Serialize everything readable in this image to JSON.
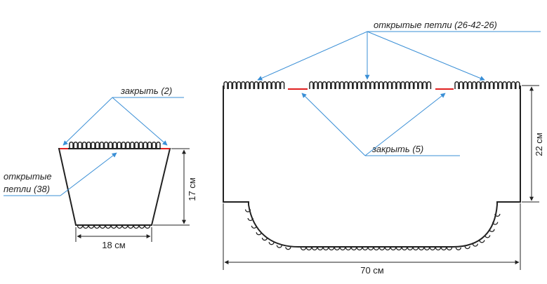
{
  "labels": {
    "open_loops_big": "открытые петли (26-42-26)",
    "close_big": "закрыть (5)",
    "close_small": "закрыть (2)",
    "open_loops_small_1": "открытые",
    "open_loops_small_2": "петли (38)"
  },
  "dimensions": {
    "small_height": "17 см",
    "small_width": "18 см",
    "big_height": "22 см",
    "big_width": "70 см"
  },
  "colors": {
    "outline": "#222222",
    "pointer": "#3a8fd6",
    "close_marker": "#e02020"
  }
}
